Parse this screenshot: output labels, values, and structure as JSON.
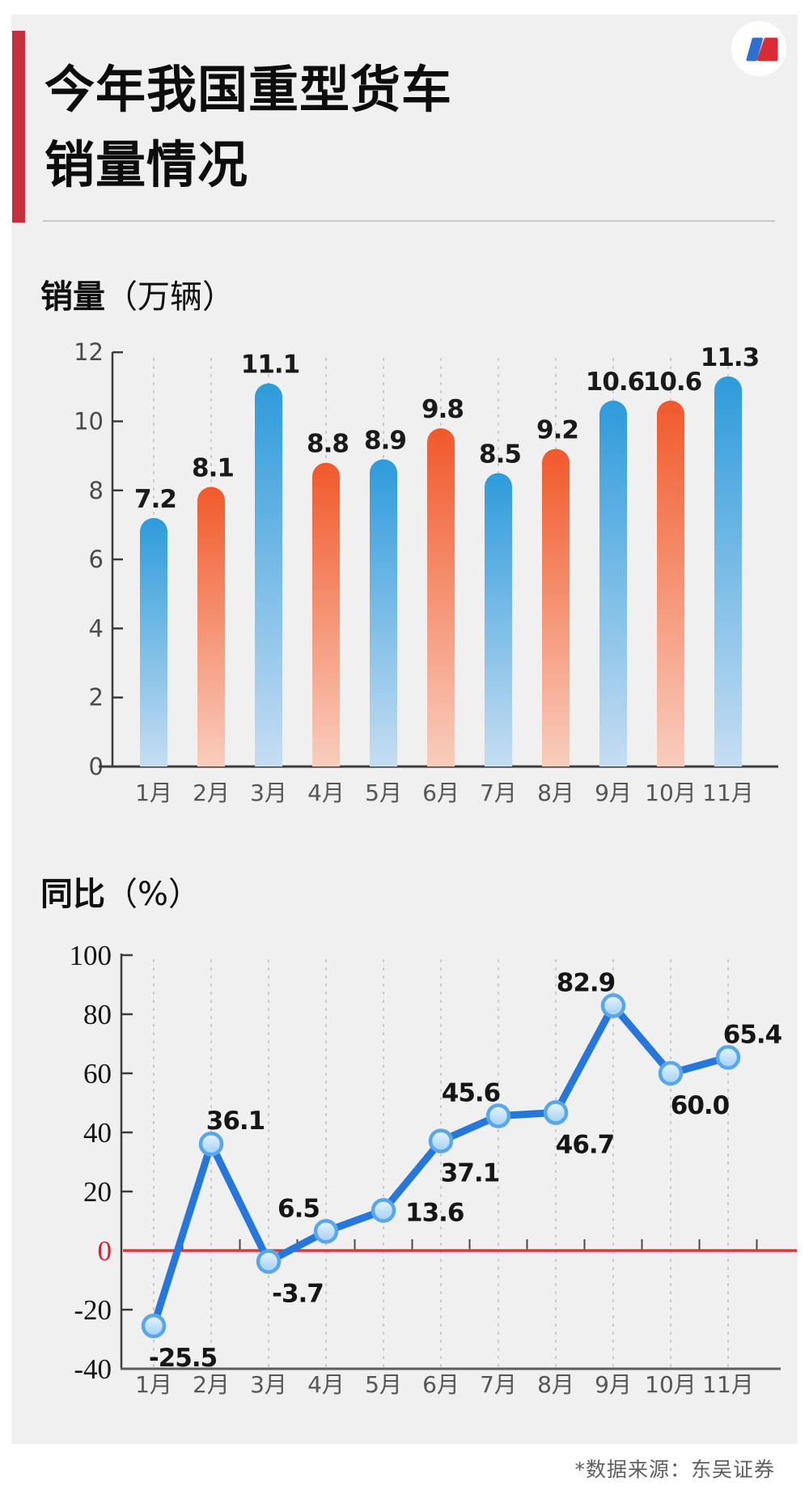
{
  "page": {
    "background": "#ffffff",
    "card_background": "#f0f0f1",
    "accent_color": "#c62f3b"
  },
  "header": {
    "title_line1": "今年我国重型货车",
    "title_line2": "销量情况",
    "logo": {
      "name": "news-logo",
      "circle_color": "#ffffff",
      "left_color": "#2f6fd4",
      "right_color": "#da2b35"
    }
  },
  "sales_section": {
    "title_bold": "销量",
    "title_unit": "（万辆）"
  },
  "yoy_section": {
    "title_bold": "同比",
    "title_unit": "（%）"
  },
  "footer": {
    "source_note": "*数据来源：东吴证券"
  },
  "chart_data": [
    {
      "id": "sales",
      "type": "bar",
      "title": "销量（万辆）",
      "categories": [
        "1月",
        "2月",
        "3月",
        "4月",
        "5月",
        "6月",
        "7月",
        "8月",
        "9月",
        "10月",
        "11月"
      ],
      "values": [
        7.2,
        8.1,
        11.1,
        8.8,
        8.9,
        9.8,
        8.5,
        9.2,
        10.6,
        10.6,
        11.3
      ],
      "value_labels": [
        "7.2",
        "8.1",
        "11.1",
        "8.8",
        "8.9",
        "9.8",
        "8.5",
        "9.2",
        "10.6",
        "10.6",
        "11.3"
      ],
      "ylim": [
        0,
        12
      ],
      "yticks": [
        0,
        2,
        4,
        6,
        8,
        10,
        12
      ],
      "grid": "dotted-vertical",
      "legend": "none",
      "colors": {
        "blue_top": "#2d9bdb",
        "blue_bottom": "#c6ddf2",
        "orange_top": "#f1592b",
        "orange_bottom": "#f9cdbd",
        "axis": "#3c3c3c",
        "tick_label": "#4b4b4b",
        "month_label": "#565656",
        "value_label": "#1a1a1a",
        "gridline": "#c9c9c9"
      },
      "bar_color_pattern": [
        "blue",
        "orange"
      ]
    },
    {
      "id": "yoy",
      "type": "line",
      "title": "同比（%）",
      "categories": [
        "1月",
        "2月",
        "3月",
        "4月",
        "5月",
        "6月",
        "7月",
        "8月",
        "9月",
        "10月",
        "11月"
      ],
      "values": [
        -25.5,
        36.1,
        -3.7,
        6.5,
        13.6,
        37.1,
        45.6,
        46.7,
        82.9,
        60.0,
        65.4
      ],
      "value_labels": [
        "-25.5",
        "36.1",
        "-3.7",
        "6.5",
        "13.6",
        "37.1",
        "45.6",
        "46.7",
        "82.9",
        "60.0",
        "65.4"
      ],
      "label_positions": [
        "below-right",
        "above-right",
        "below-right",
        "above-left",
        "right",
        "below-right",
        "above-left",
        "below-right",
        "above-left",
        "below-right",
        "above-right"
      ],
      "ylim": [
        -40,
        100
      ],
      "yticks": [
        100,
        80,
        60,
        40,
        20,
        0,
        -20,
        -40
      ],
      "grid": "dotted-vertical",
      "zero_line": true,
      "colors": {
        "line": "#2577dc",
        "marker_fill_light": "#e9f4fd",
        "marker_fill_dark": "#9fd0f4",
        "marker_stroke": "#58a7ea",
        "zero_line": "#e2333f",
        "zero_tick_label": "#d7222f",
        "axis": "#3c3c3c",
        "tick_label": "#151515",
        "month_label": "#565656",
        "value_label": "#161616",
        "gridline": "#c9c9c9",
        "bottom_axis": "#5e5e5e"
      }
    }
  ]
}
